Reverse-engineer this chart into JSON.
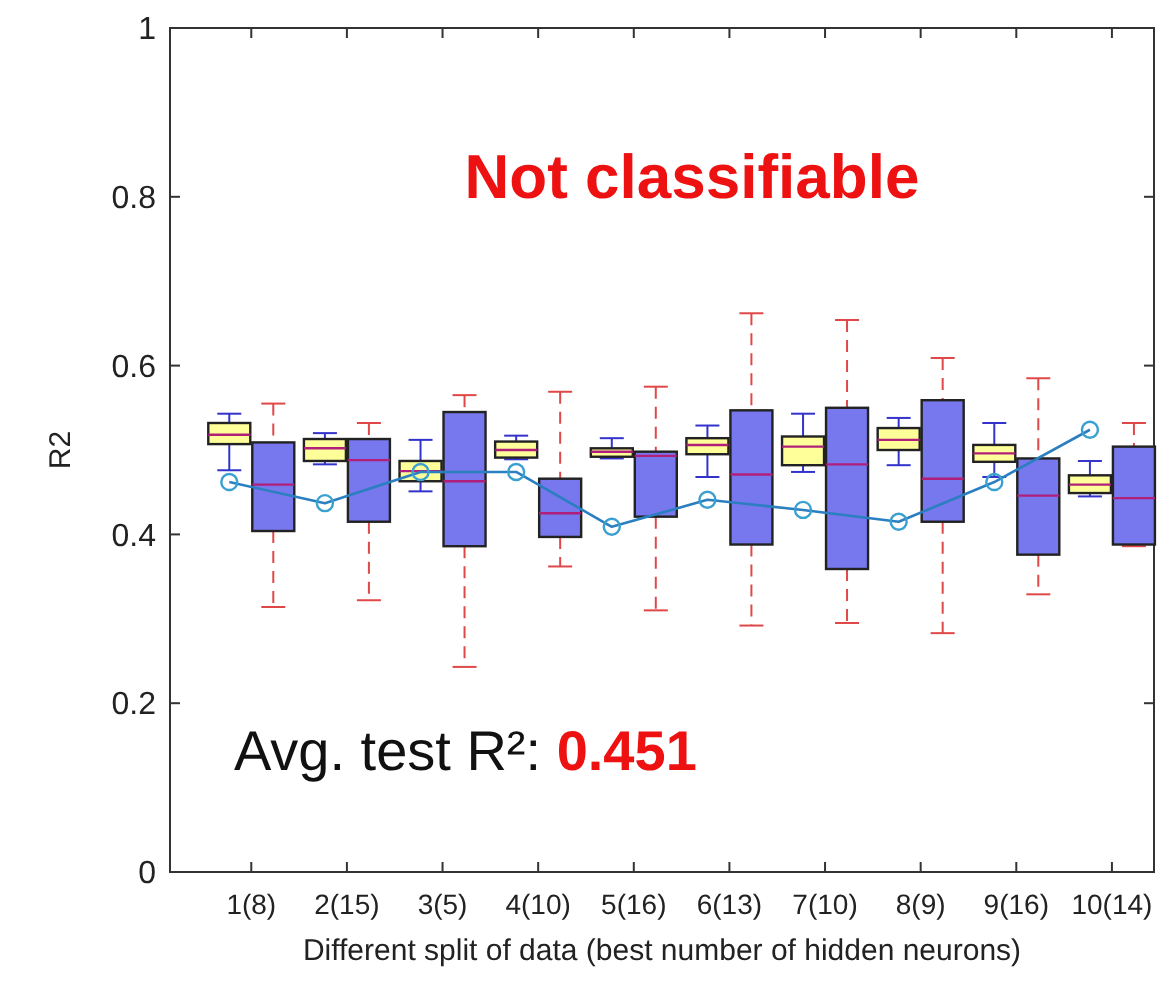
{
  "chart_data": {
    "type": "box",
    "xlabel": "Different split of data (best number of hidden neurons)",
    "ylabel": "R2",
    "categories": [
      "1(8)",
      "2(15)",
      "3(5)",
      "4(10)",
      "5(16)",
      "6(13)",
      "7(10)",
      "8(9)",
      "9(16)",
      "10(14)"
    ],
    "ylim": [
      0,
      1
    ],
    "yticks": [
      0,
      0.2,
      0.4,
      0.6,
      0.8,
      1
    ],
    "grid": false,
    "annotations": [
      "Not classifiable",
      "Avg. test R²: 0.451"
    ],
    "series": [
      {
        "color": "#ffff99",
        "line_style": "solid",
        "boxes": [
          {
            "low": 0.476,
            "q1": 0.507,
            "median": 0.518,
            "q3": 0.532,
            "high": 0.543
          },
          {
            "low": 0.483,
            "q1": 0.487,
            "median": 0.502,
            "q3": 0.513,
            "high": 0.52
          },
          {
            "low": 0.451,
            "q1": 0.463,
            "median": 0.475,
            "q3": 0.487,
            "high": 0.512
          },
          {
            "low": 0.489,
            "q1": 0.491,
            "median": 0.5,
            "q3": 0.51,
            "high": 0.517
          },
          {
            "low": 0.49,
            "q1": 0.492,
            "median": 0.498,
            "q3": 0.502,
            "high": 0.514
          },
          {
            "low": 0.468,
            "q1": 0.495,
            "median": 0.506,
            "q3": 0.514,
            "high": 0.529
          },
          {
            "low": 0.474,
            "q1": 0.482,
            "median": 0.504,
            "q3": 0.516,
            "high": 0.543
          },
          {
            "low": 0.482,
            "q1": 0.5,
            "median": 0.512,
            "q3": 0.526,
            "high": 0.538
          },
          {
            "low": 0.468,
            "q1": 0.486,
            "median": 0.496,
            "q3": 0.506,
            "high": 0.532
          },
          {
            "low": 0.445,
            "q1": 0.449,
            "median": 0.459,
            "q3": 0.47,
            "high": 0.487
          }
        ]
      },
      {
        "color": "#7777ee",
        "line_style": "dashed",
        "boxes": [
          {
            "low": 0.314,
            "q1": 0.404,
            "median": 0.459,
            "q3": 0.509,
            "high": 0.555
          },
          {
            "low": 0.322,
            "q1": 0.415,
            "median": 0.488,
            "q3": 0.513,
            "high": 0.532
          },
          {
            "low": 0.243,
            "q1": 0.386,
            "median": 0.463,
            "q3": 0.545,
            "high": 0.565
          },
          {
            "low": 0.362,
            "q1": 0.397,
            "median": 0.425,
            "q3": 0.466,
            "high": 0.569
          },
          {
            "low": 0.31,
            "q1": 0.421,
            "median": 0.493,
            "q3": 0.498,
            "high": 0.575
          },
          {
            "low": 0.292,
            "q1": 0.388,
            "median": 0.471,
            "q3": 0.547,
            "high": 0.662
          },
          {
            "low": 0.295,
            "q1": 0.359,
            "median": 0.483,
            "q3": 0.55,
            "high": 0.654
          },
          {
            "low": 0.283,
            "q1": 0.415,
            "median": 0.466,
            "q3": 0.559,
            "high": 0.609
          },
          {
            "low": 0.329,
            "q1": 0.376,
            "median": 0.446,
            "q3": 0.49,
            "high": 0.585
          },
          {
            "low": 0.386,
            "q1": 0.388,
            "median": 0.443,
            "q3": 0.504,
            "high": 0.532
          }
        ]
      },
      {
        "type": "line",
        "color": "#2a7fc0",
        "marker": "circle",
        "values": [
          0.462,
          0.437,
          0.474,
          0.474,
          0.409,
          0.441,
          0.429,
          0.415,
          0.462,
          0.524
        ]
      }
    ]
  }
}
